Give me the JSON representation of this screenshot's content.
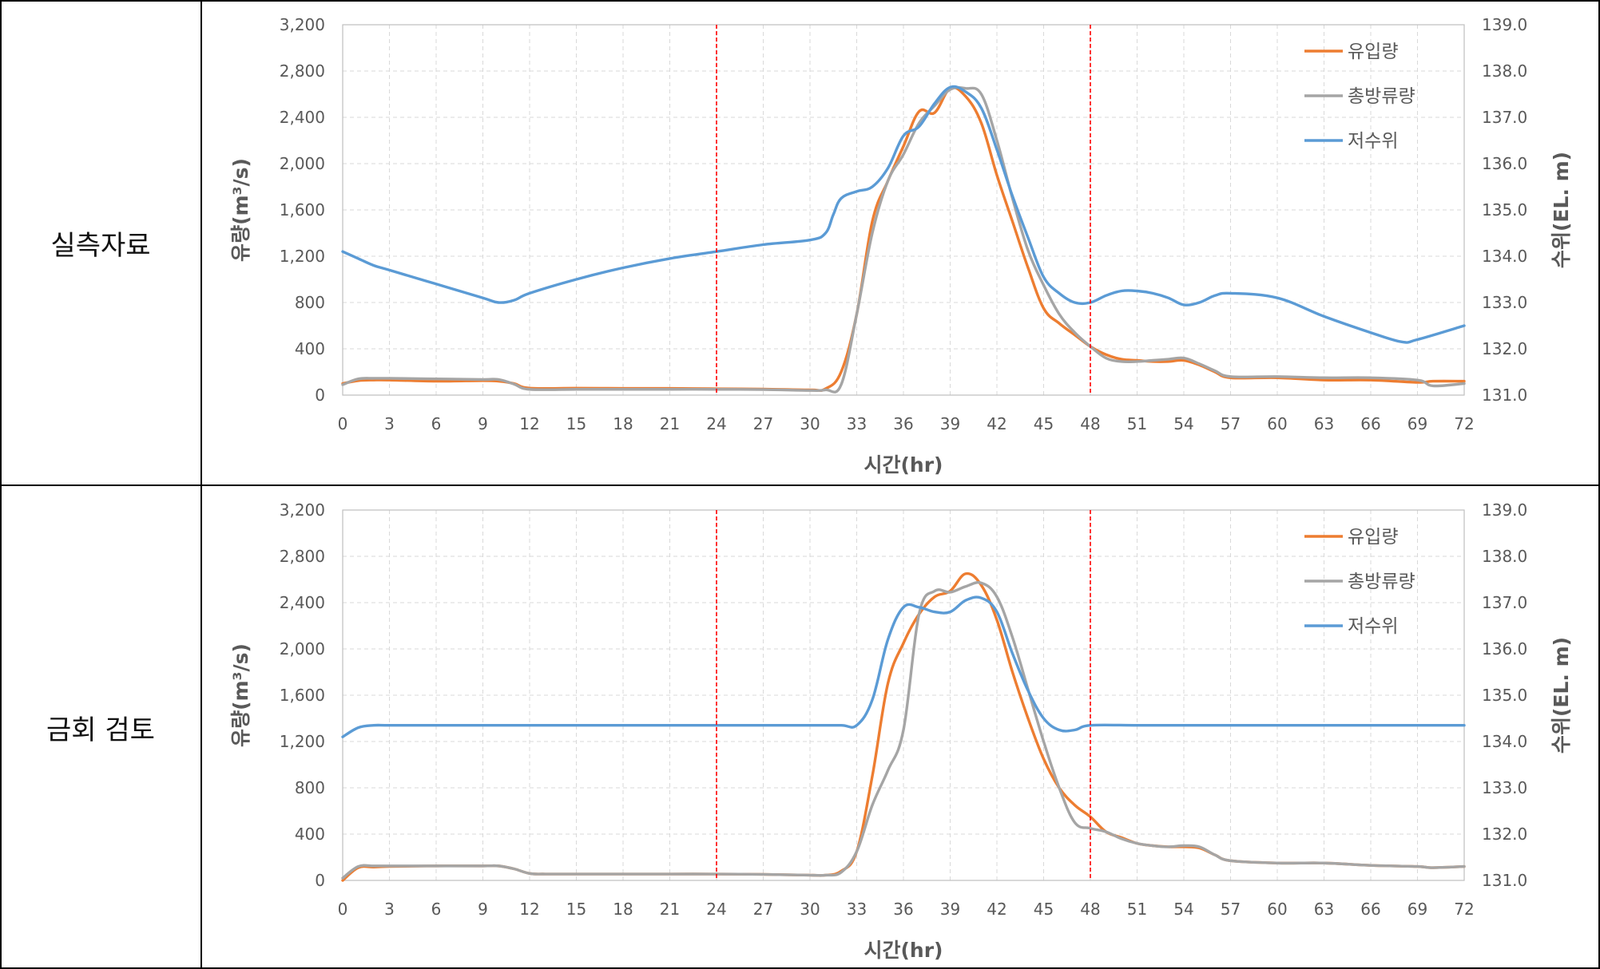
{
  "rows": [
    {
      "label": "실측자료"
    },
    {
      "label": "금회 검토"
    }
  ],
  "colors": {
    "inflow": "#ED7D31",
    "outflow": "#A5A5A5",
    "level": "#5B9BD5",
    "marker": "#FF0000",
    "grid": "#D9D9D9",
    "axis_text": "#595959"
  },
  "chart_data": [
    {
      "type": "line",
      "xlabel": "시간(hr)",
      "ylabel": "유량(m³/s)",
      "y2label": "수위(EL. m)",
      "xlim": [
        0,
        72
      ],
      "ylim": [
        0,
        3200
      ],
      "y2lim": [
        131.0,
        139.0
      ],
      "xticks": [
        "0",
        "3",
        "6",
        "9",
        "12",
        "15",
        "18",
        "21",
        "24",
        "27",
        "30",
        "33",
        "36",
        "39",
        "42",
        "45",
        "48",
        "51",
        "54",
        "57",
        "60",
        "63",
        "66",
        "69",
        "72"
      ],
      "yticks": [
        "0",
        "400",
        "800",
        "1,200",
        "1,600",
        "2,000",
        "2,400",
        "2,800",
        "3,200"
      ],
      "y2ticks": [
        "131.0",
        "132.0",
        "133.0",
        "134.0",
        "135.0",
        "136.0",
        "137.0",
        "138.0",
        "139.0"
      ],
      "vlines": [
        24,
        48
      ],
      "legend": [
        "유입량",
        "총방류량",
        "저수위"
      ],
      "legend_position": "top-right",
      "grid": true,
      "series": [
        {
          "name": "유입량",
          "axis": "left",
          "x": [
            0,
            1,
            2,
            3,
            6,
            9,
            10,
            11,
            12,
            15,
            18,
            21,
            24,
            27,
            30,
            31,
            32,
            33,
            34,
            35,
            36,
            37,
            38,
            39,
            40,
            41,
            42,
            43,
            44,
            45,
            46,
            47,
            48,
            49,
            50,
            51,
            52,
            53,
            54,
            55,
            56,
            57,
            60,
            63,
            66,
            69,
            70,
            72
          ],
          "y": [
            100,
            125,
            130,
            130,
            120,
            125,
            120,
            100,
            60,
            60,
            58,
            58,
            55,
            52,
            45,
            55,
            200,
            700,
            1500,
            1850,
            2150,
            2450,
            2440,
            2650,
            2580,
            2350,
            1900,
            1500,
            1100,
            750,
            620,
            520,
            420,
            350,
            310,
            300,
            290,
            290,
            300,
            260,
            200,
            150,
            150,
            130,
            130,
            110,
            120,
            120
          ]
        },
        {
          "name": "총방류량",
          "axis": "left",
          "x": [
            0,
            1,
            2,
            3,
            6,
            9,
            10,
            11,
            12,
            15,
            18,
            21,
            24,
            27,
            30,
            31,
            32,
            33,
            34,
            35,
            36,
            37,
            38,
            39,
            40,
            41,
            42,
            43,
            44,
            45,
            46,
            47,
            48,
            49,
            50,
            51,
            52,
            53,
            54,
            55,
            56,
            57,
            60,
            63,
            66,
            69,
            70,
            72
          ],
          "y": [
            90,
            140,
            145,
            145,
            140,
            135,
            135,
            95,
            50,
            50,
            50,
            50,
            50,
            48,
            40,
            45,
            90,
            700,
            1400,
            1850,
            2080,
            2350,
            2500,
            2640,
            2650,
            2600,
            2200,
            1700,
            1250,
            950,
            700,
            540,
            420,
            320,
            290,
            290,
            300,
            310,
            320,
            270,
            210,
            160,
            160,
            150,
            150,
            130,
            80,
            100
          ]
        },
        {
          "name": "저수위",
          "axis": "right",
          "x": [
            0,
            1,
            2,
            3,
            6,
            9,
            10,
            11,
            12,
            15,
            18,
            21,
            24,
            27,
            30,
            31,
            31.5,
            32,
            33,
            34,
            35,
            36,
            37,
            38,
            39,
            40,
            41,
            42,
            43,
            44,
            45,
            46,
            47,
            48,
            49,
            50,
            51,
            52,
            53,
            54,
            55,
            56,
            57,
            60,
            63,
            66,
            68,
            69,
            72
          ],
          "y": [
            134.1,
            133.95,
            133.8,
            133.7,
            133.4,
            133.1,
            133.0,
            133.05,
            133.2,
            133.5,
            133.75,
            133.95,
            134.1,
            134.25,
            134.35,
            134.5,
            134.9,
            135.25,
            135.4,
            135.5,
            135.9,
            136.6,
            136.8,
            137.3,
            137.65,
            137.55,
            137.2,
            136.3,
            135.3,
            134.4,
            133.55,
            133.2,
            133.0,
            133.0,
            133.15,
            133.25,
            133.25,
            133.2,
            133.1,
            132.95,
            133.0,
            133.15,
            133.2,
            133.1,
            132.7,
            132.35,
            132.15,
            132.2,
            132.5
          ]
        }
      ]
    },
    {
      "type": "line",
      "xlabel": "시간(hr)",
      "ylabel": "유량(m³/s)",
      "y2label": "수위(EL. m)",
      "xlim": [
        0,
        72
      ],
      "ylim": [
        0,
        3200
      ],
      "y2lim": [
        131.0,
        139.0
      ],
      "xticks": [
        "0",
        "3",
        "6",
        "9",
        "12",
        "15",
        "18",
        "21",
        "24",
        "27",
        "30",
        "33",
        "36",
        "39",
        "42",
        "45",
        "48",
        "51",
        "54",
        "57",
        "60",
        "63",
        "66",
        "69",
        "72"
      ],
      "yticks": [
        "0",
        "400",
        "800",
        "1,200",
        "1,600",
        "2,000",
        "2,400",
        "2,800",
        "3,200"
      ],
      "y2ticks": [
        "131.0",
        "132.0",
        "133.0",
        "134.0",
        "135.0",
        "136.0",
        "137.0",
        "138.0",
        "139.0"
      ],
      "vlines": [
        24,
        48
      ],
      "legend": [
        "유입량",
        "총방류량",
        "저수위"
      ],
      "legend_position": "top-right",
      "grid": true,
      "series": [
        {
          "name": "유입량",
          "axis": "left",
          "x": [
            0,
            1,
            2,
            3,
            6,
            9,
            10,
            11,
            12,
            13,
            15,
            18,
            21,
            24,
            27,
            30,
            31,
            32,
            33,
            34,
            35,
            36,
            37,
            38,
            39,
            40,
            41,
            42,
            43,
            44,
            45,
            46,
            47,
            48,
            49,
            50,
            51,
            52,
            53,
            54,
            55,
            56,
            57,
            60,
            63,
            66,
            69,
            70,
            72
          ],
          "y": [
            0,
            110,
            115,
            120,
            125,
            125,
            125,
            100,
            60,
            55,
            55,
            55,
            55,
            55,
            52,
            45,
            45,
            80,
            250,
            900,
            1700,
            2050,
            2300,
            2450,
            2500,
            2650,
            2550,
            2250,
            1800,
            1400,
            1050,
            800,
            650,
            550,
            420,
            370,
            320,
            300,
            290,
            290,
            280,
            220,
            170,
            150,
            150,
            130,
            120,
            110,
            120
          ]
        },
        {
          "name": "총방류량",
          "axis": "left",
          "x": [
            0,
            1,
            2,
            3,
            6,
            9,
            10,
            11,
            12,
            13,
            15,
            18,
            21,
            24,
            27,
            30,
            31,
            32,
            33,
            34,
            35,
            36,
            37,
            38,
            39,
            40,
            41,
            42,
            43,
            44,
            45,
            46,
            47,
            48,
            49,
            50,
            51,
            52,
            53,
            54,
            55,
            56,
            57,
            60,
            63,
            66,
            69,
            70,
            72
          ],
          "y": [
            20,
            120,
            125,
            125,
            125,
            125,
            125,
            100,
            60,
            55,
            55,
            55,
            55,
            55,
            52,
            45,
            45,
            70,
            250,
            650,
            950,
            1300,
            2300,
            2500,
            2490,
            2540,
            2570,
            2450,
            2100,
            1650,
            1200,
            800,
            500,
            450,
            420,
            360,
            320,
            300,
            290,
            300,
            290,
            220,
            170,
            150,
            150,
            130,
            120,
            110,
            120
          ]
        },
        {
          "name": "저수위",
          "axis": "right",
          "x": [
            0,
            1,
            2,
            3,
            6,
            9,
            12,
            15,
            18,
            21,
            24,
            27,
            30,
            32,
            33,
            34,
            35,
            36,
            37,
            38,
            39,
            40,
            41,
            42,
            43,
            44,
            45,
            46,
            47,
            48,
            51,
            54,
            57,
            60,
            63,
            66,
            69,
            72
          ],
          "y": [
            134.1,
            134.3,
            134.35,
            134.35,
            134.35,
            134.35,
            134.35,
            134.35,
            134.35,
            134.35,
            134.35,
            134.35,
            134.35,
            134.35,
            134.35,
            134.9,
            136.2,
            136.9,
            136.9,
            136.8,
            136.8,
            137.05,
            137.1,
            136.8,
            135.9,
            135.1,
            134.5,
            134.25,
            134.25,
            134.35,
            134.35,
            134.35,
            134.35,
            134.35,
            134.35,
            134.35,
            134.35,
            134.35
          ]
        }
      ]
    }
  ]
}
